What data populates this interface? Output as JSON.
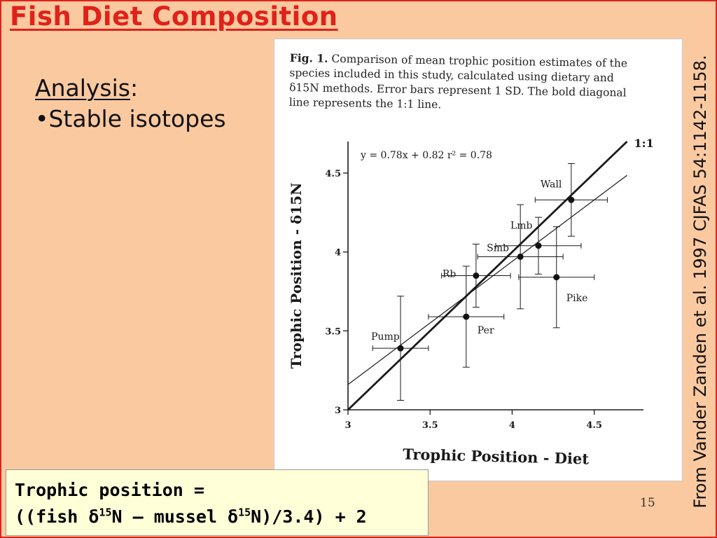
{
  "slide": {
    "title": "Fish Diet Composition",
    "analysis_label": "Analysis",
    "analysis_colon": ":",
    "bullet": "•Stable isotopes",
    "formula_line1": "Trophic position =",
    "formula_line2_a": "((fish δ",
    "formula_line2_sup1": "15",
    "formula_line2_b": "N – mussel δ",
    "formula_line2_sup2": "15",
    "formula_line2_c": "N)/3.4) + 2",
    "slide_number": "15",
    "citation": "From Vander Zanden et al. 1997 CJFAS 54:1142-1158."
  },
  "figure": {
    "caption_label": "Fig. 1.",
    "caption_text": "Comparison of mean trophic position estimates of the species included in this study, calculated using dietary and δ15N methods. Error bars represent 1 SD. The bold diagonal line represents the 1:1 line."
  },
  "chart_data": {
    "type": "scatter",
    "xlabel": "Trophic Position - Diet",
    "ylabel": "Trophic Position - δ15N",
    "xlim": [
      3,
      4.8
    ],
    "ylim": [
      3,
      4.7
    ],
    "xticks": [
      3,
      3.5,
      4,
      4.5
    ],
    "yticks": [
      3,
      3.5,
      4,
      4.5
    ],
    "xtick_labels": [
      "3",
      "3.5",
      "4",
      "4.5"
    ],
    "ytick_labels": [
      "3",
      "3.5",
      "4",
      "4.5"
    ],
    "regression_label": "y = 0.78x + 0.82   r² = 0.78",
    "regression": {
      "slope": 0.78,
      "intercept": 0.82
    },
    "identity_label": "1:1",
    "grid": false,
    "points": [
      {
        "name": "Pump",
        "x": 3.32,
        "y": 3.39,
        "x_sd": 0.17,
        "y_sd": 0.33
      },
      {
        "name": "Per",
        "x": 3.72,
        "y": 3.59,
        "x_sd": 0.23,
        "y_sd": 0.32
      },
      {
        "name": "Rb",
        "x": 3.78,
        "y": 3.85,
        "x_sd": 0.21,
        "y_sd": 0.2
      },
      {
        "name": "Smb",
        "x": 4.05,
        "y": 3.97,
        "x_sd": 0.26,
        "y_sd": 0.33
      },
      {
        "name": "Lmb",
        "x": 4.16,
        "y": 4.04,
        "x_sd": 0.26,
        "y_sd": 0.18
      },
      {
        "name": "Pike",
        "x": 4.27,
        "y": 3.84,
        "x_sd": 0.23,
        "y_sd": 0.32
      },
      {
        "name": "Wall",
        "x": 4.36,
        "y": 4.33,
        "x_sd": 0.22,
        "y_sd": 0.23
      }
    ]
  }
}
